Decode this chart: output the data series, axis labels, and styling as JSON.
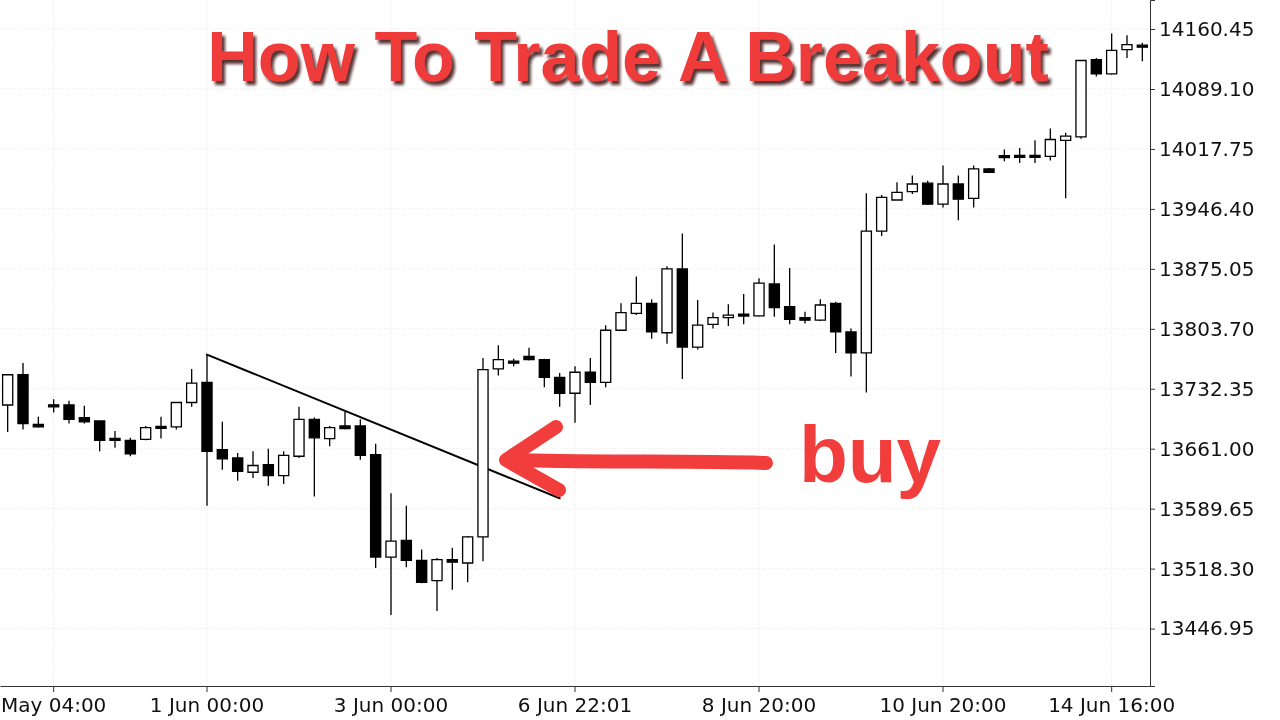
{
  "chart_data": {
    "type": "candlestick",
    "title": "How To Trade A Breakout",
    "annotations": [
      "buy"
    ],
    "categories": [
      null,
      null,
      null,
      "May 04:00",
      null,
      null,
      null,
      null,
      null,
      null,
      null,
      null,
      null,
      "1 Jun 00:00",
      null,
      null,
      null,
      null,
      null,
      null,
      null,
      null,
      null,
      null,
      null,
      "3 Jun 00:00",
      null,
      null,
      null,
      null,
      null,
      null,
      null,
      null,
      null,
      null,
      null,
      "6 Jun 22:01",
      null,
      null,
      null,
      null,
      null,
      null,
      null,
      null,
      null,
      null,
      null,
      "8 Jun 20:00",
      null,
      null,
      null,
      null,
      null,
      null,
      null,
      null,
      null,
      null,
      null,
      "10 Jun 20:00",
      null,
      null,
      null,
      null,
      null,
      null,
      null,
      null,
      null,
      null,
      "14 Jun 16:00",
      null,
      null
    ],
    "ohlc": [
      [
        13713,
        13750,
        13681,
        13749
      ],
      [
        13749,
        13763,
        13684,
        13691
      ],
      [
        13690,
        13699,
        13686,
        13687
      ],
      [
        13712,
        13720,
        13704,
        13712
      ],
      [
        13713,
        13718,
        13691,
        13696
      ],
      [
        13698,
        13712,
        13691,
        13693
      ],
      [
        13694,
        13694,
        13658,
        13671
      ],
      [
        13673,
        13682,
        13662,
        13671
      ],
      [
        13671,
        13674,
        13652,
        13655
      ],
      [
        13672,
        13688,
        13671,
        13686
      ],
      [
        13687,
        13699,
        13673,
        13686
      ],
      [
        13687,
        13717,
        13684,
        13716
      ],
      [
        13716,
        13756,
        13711,
        13739
      ],
      [
        13740,
        13773,
        13593,
        13658
      ],
      [
        13660,
        13693,
        13636,
        13649
      ],
      [
        13650,
        13656,
        13623,
        13634
      ],
      [
        13633,
        13658,
        13626,
        13641
      ],
      [
        13642,
        13661,
        13617,
        13629
      ],
      [
        13629,
        13658,
        13619,
        13653
      ],
      [
        13652,
        13711,
        13650,
        13696
      ],
      [
        13696,
        13698,
        13604,
        13674
      ],
      [
        13673,
        13688,
        13664,
        13686
      ],
      [
        13688,
        13705,
        13684,
        13685
      ],
      [
        13688,
        13696,
        13648,
        13653
      ],
      [
        13654,
        13667,
        13519,
        13532
      ],
      [
        13532,
        13608,
        13463,
        13551
      ],
      [
        13552,
        13593,
        13520,
        13528
      ],
      [
        13528,
        13541,
        13501,
        13502
      ],
      [
        13504,
        13531,
        13468,
        13529
      ],
      [
        13529,
        13543,
        13493,
        13526
      ],
      [
        13525,
        13557,
        13502,
        13556
      ],
      [
        13556,
        13769,
        13527,
        13755
      ],
      [
        13756,
        13784,
        13748,
        13767
      ],
      [
        13764,
        13768,
        13759,
        13764
      ],
      [
        13771,
        13781,
        13766,
        13767
      ],
      [
        13767,
        13768,
        13734,
        13746
      ],
      [
        13746,
        13751,
        13711,
        13727
      ],
      [
        13727,
        13759,
        13692,
        13752
      ],
      [
        13752,
        13769,
        13713,
        13740
      ],
      [
        13740,
        13808,
        13734,
        13802
      ],
      [
        13802,
        13834,
        13801,
        13823
      ],
      [
        13822,
        13866,
        13820,
        13834
      ],
      [
        13834,
        13839,
        13792,
        13800
      ],
      [
        13799,
        13878,
        13786,
        13875
      ],
      [
        13875,
        13917,
        13744,
        13782
      ],
      [
        13782,
        13838,
        13779,
        13808
      ],
      [
        13809,
        13823,
        13804,
        13817
      ],
      [
        13817,
        13833,
        13807,
        13820
      ],
      [
        13821,
        13845,
        13809,
        13819
      ],
      [
        13819,
        13864,
        13818,
        13858
      ],
      [
        13857,
        13904,
        13818,
        13829
      ],
      [
        13830,
        13876,
        13809,
        13815
      ],
      [
        13817,
        13824,
        13810,
        13814
      ],
      [
        13814,
        13839,
        13813,
        13832
      ],
      [
        13834,
        13836,
        13775,
        13800
      ],
      [
        13800,
        13804,
        13747,
        13775
      ],
      [
        13775,
        13965,
        13728,
        13920
      ],
      [
        13920,
        13963,
        13914,
        13960
      ],
      [
        13957,
        13978,
        13956,
        13966
      ],
      [
        13967,
        13986,
        13964,
        13976
      ],
      [
        13977,
        13980,
        13951,
        13952
      ],
      [
        13952,
        13998,
        13948,
        13976
      ],
      [
        13976,
        13986,
        13933,
        13958
      ],
      [
        13959,
        13998,
        13948,
        13994
      ],
      [
        13994,
        13995,
        13989,
        13990
      ],
      [
        14009,
        14017,
        14003,
        14008
      ],
      [
        14009,
        14019,
        14001,
        14009
      ],
      [
        14009,
        14028,
        14001,
        14009
      ],
      [
        14009,
        14042,
        14004,
        14029
      ],
      [
        14028,
        14037,
        13959,
        14033
      ],
      [
        14032,
        14124,
        14030,
        14123
      ],
      [
        14124,
        14126,
        14104,
        14107
      ],
      [
        14107,
        14155,
        14106,
        14135
      ],
      [
        14136,
        14153,
        14126,
        14142
      ],
      [
        14140,
        14144,
        14122,
        14140
      ]
    ],
    "color": "#000000",
    "colors": [
      "#ffffff",
      "#000000",
      "#000000",
      "#000000",
      "#000000",
      "#000000",
      "#000000",
      "#000000",
      "#000000",
      "#ffffff",
      "#000000",
      "#ffffff",
      "#ffffff",
      "#000000",
      "#000000",
      "#000000",
      "#ffffff",
      "#000000",
      "#ffffff",
      "#ffffff",
      "#000000",
      "#ffffff",
      "#000000",
      "#000000",
      "#000000",
      "#ffffff",
      "#000000",
      "#000000",
      "#ffffff",
      "#000000",
      "#ffffff",
      "#ffffff",
      "#ffffff",
      "#000000",
      "#000000",
      "#000000",
      "#000000",
      "#ffffff",
      "#000000",
      "#ffffff",
      "#ffffff",
      "#ffffff",
      "#000000",
      "#ffffff",
      "#000000",
      "#ffffff",
      "#ffffff",
      "#ffffff",
      "#000000",
      "#ffffff",
      "#000000",
      "#000000",
      "#000000",
      "#ffffff",
      "#000000",
      "#000000",
      "#ffffff",
      "#ffffff",
      "#ffffff",
      "#ffffff",
      "#000000",
      "#ffffff",
      "#000000",
      "#ffffff",
      "#000000",
      "#000000",
      "#000000",
      "#000000",
      "#ffffff",
      "#ffffff",
      "#ffffff",
      "#000000",
      "#ffffff",
      "#ffffff",
      "#000000"
    ],
    "series": [
      {
        "type": "line",
        "color": "#000000",
        "values": [
          null,
          null,
          null,
          null,
          null,
          null,
          null,
          null,
          null,
          null,
          null,
          null,
          null,
          13773,
          null,
          null,
          null,
          null,
          null,
          null,
          null,
          null,
          null,
          null,
          null,
          null,
          null,
          null,
          null,
          null,
          null,
          null,
          null,
          null,
          null,
          null,
          13602,
          null,
          null,
          null,
          null,
          null,
          null,
          null,
          null,
          null,
          null,
          null,
          null,
          null,
          null,
          null,
          null,
          null,
          null,
          null,
          null,
          null,
          null,
          null,
          null,
          null,
          null,
          null,
          null,
          null,
          null,
          null,
          null,
          null,
          null,
          null,
          null,
          null,
          null
        ]
      }
    ],
    "ylim": [
      13378.6,
      14195.0
    ],
    "yticks": [
      13446.95,
      {
        "value": 13518.3,
        "label": "13518.30"
      },
      13589.65,
      {
        "value": 13661,
        "label": "13661.00"
      },
      13732.35,
      {
        "value": 13803.7,
        "label": "13803.70"
      },
      13875.05,
      {
        "value": 13946.4,
        "label": "13946.40"
      },
      14017.75,
      {
        "value": 14089.1,
        "label": "14089.10"
      },
      14160.45
    ],
    "grid": true
  }
}
